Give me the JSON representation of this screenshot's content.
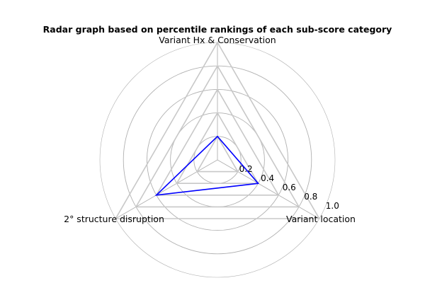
{
  "chart_data": {
    "type": "radar",
    "title": "Radar graph based on percentile rankings of each sub-score category",
    "axes": [
      "Variant Hx & Conservation",
      "Variant location",
      "2° structure disruption"
    ],
    "series": [
      {
        "values": [
          0.2,
          0.4,
          0.6
        ],
        "color": "#0000ff"
      }
    ],
    "radial_ticks": [
      "0.2",
      "0.4",
      "0.6",
      "0.8",
      "1.0"
    ],
    "rlim": [
      0,
      1.0
    ],
    "grid": true,
    "grid_color": "#b0b0b0",
    "triangle_grid_color": "#c8c8c8"
  }
}
